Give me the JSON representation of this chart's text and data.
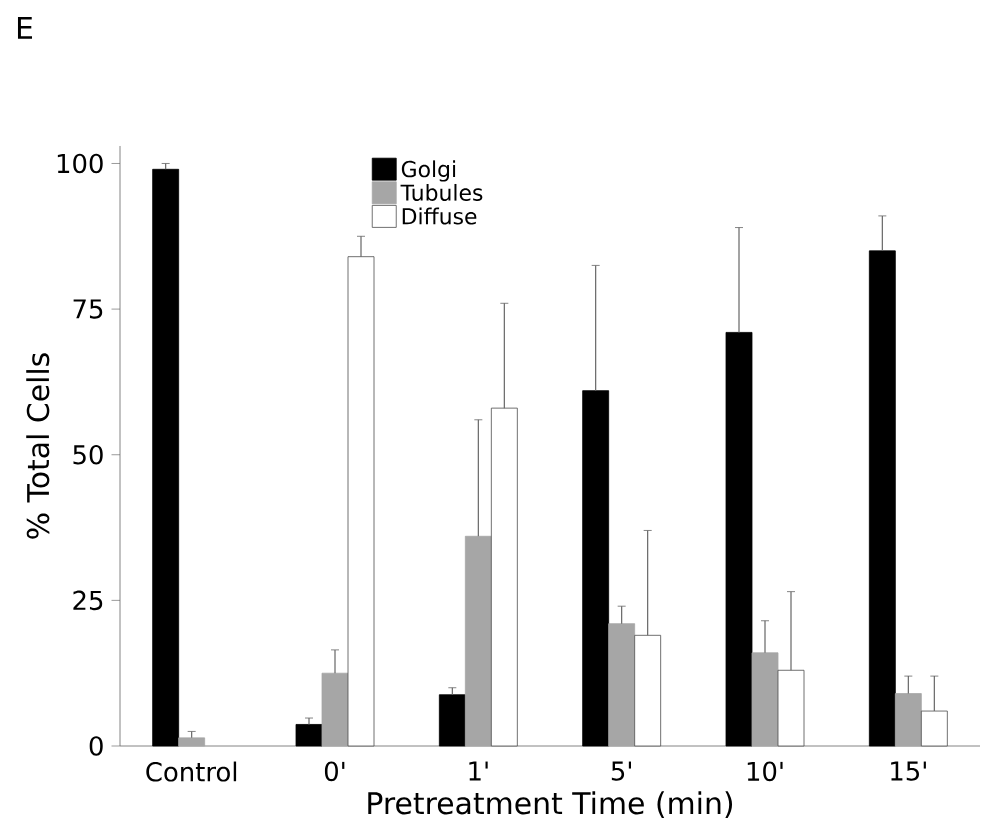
{
  "chart_data": {
    "type": "bar",
    "title": "E",
    "xlabel": "Pretreatment Time (min)",
    "ylabel": "% Total Cells",
    "categories": [
      "Control",
      "0'",
      "1'",
      "5'",
      "10'",
      "15'"
    ],
    "series": [
      {
        "name": "Golgi",
        "color": "#000000",
        "values": [
          99,
          3.7,
          8.8,
          61,
          71,
          85
        ],
        "errors": [
          1,
          1.1,
          1.2,
          21.5,
          18,
          6
        ]
      },
      {
        "name": "Tubules",
        "color": "#a6a6a6",
        "values": [
          1.4,
          12.5,
          36,
          21,
          16,
          9
        ],
        "errors": [
          1.1,
          4,
          20,
          3,
          5.5,
          3
        ]
      },
      {
        "name": "Diffuse",
        "color": "#ffffff",
        "values": [
          null,
          84,
          58,
          19,
          13,
          6
        ],
        "errors": [
          null,
          3.5,
          18,
          18,
          13.5,
          6
        ]
      }
    ],
    "ylim": [
      0,
      103
    ],
    "yticks": [
      0,
      25,
      50,
      75,
      100
    ],
    "grid": false,
    "legend": "top"
  }
}
